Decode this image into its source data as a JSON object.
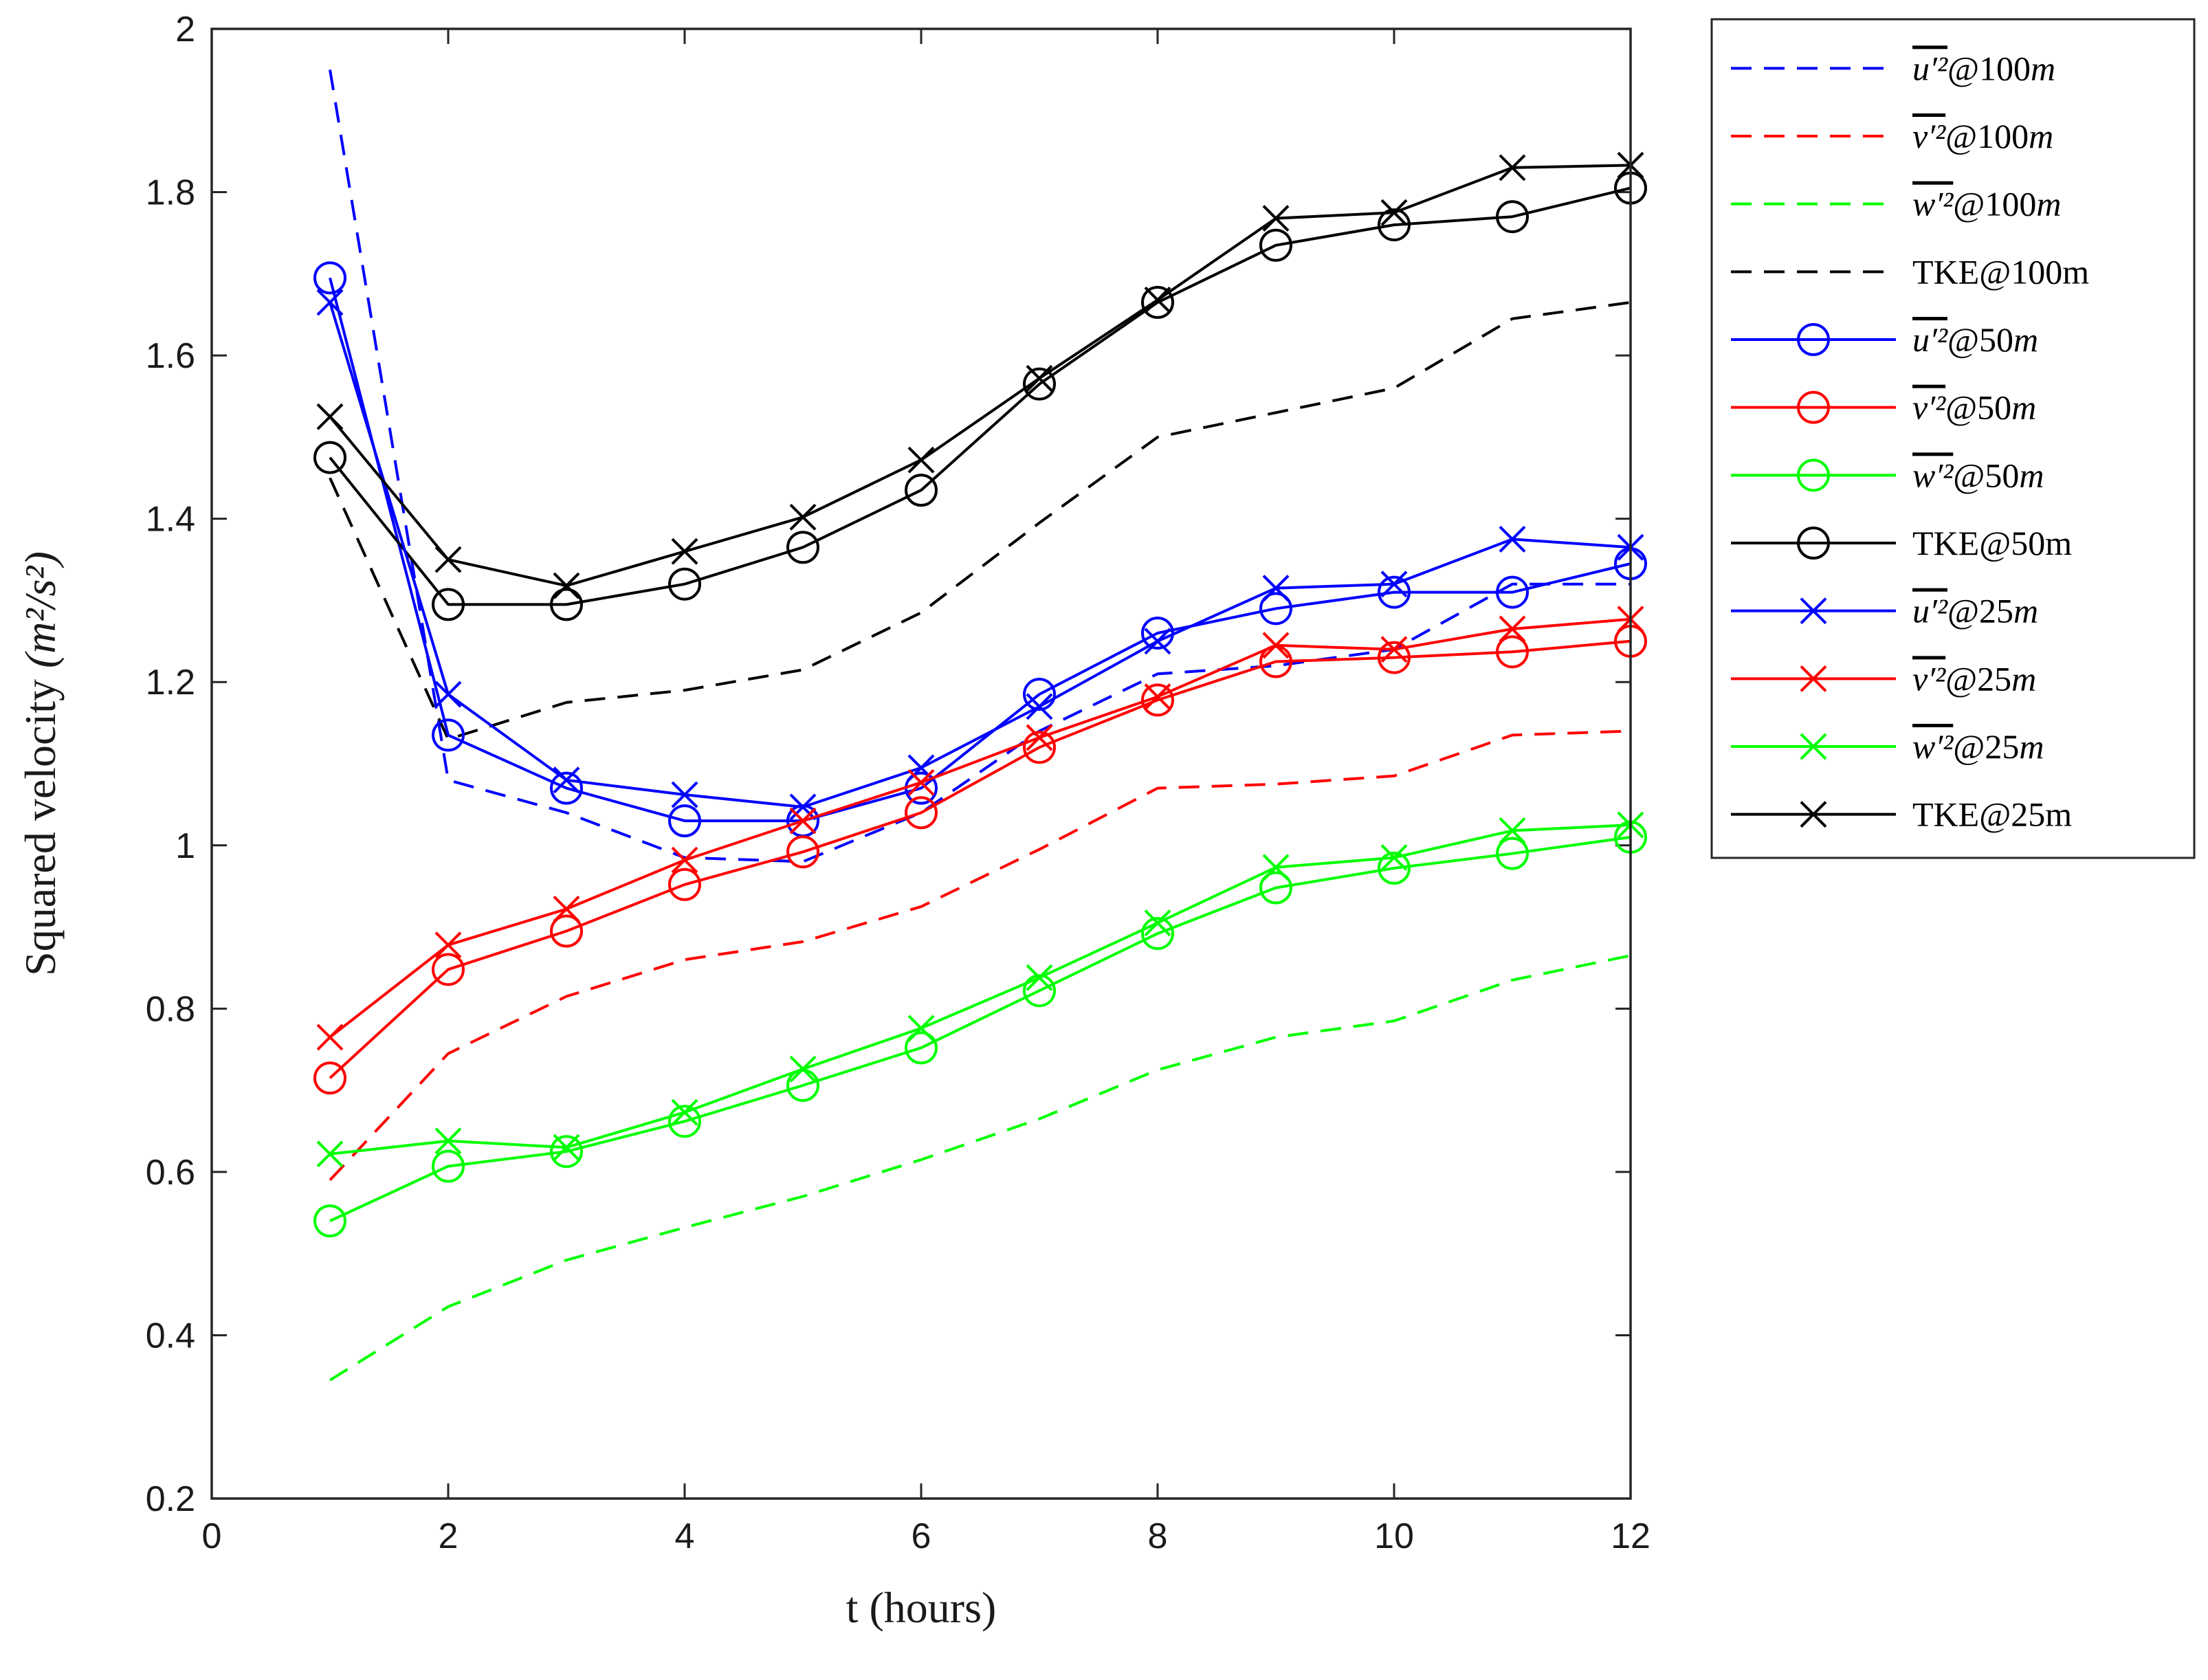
{
  "chart_data": {
    "type": "line",
    "title": "",
    "xlabel": "t (hours)",
    "ylabel_text": "Squared velocity ",
    "ylabel_unit": "(m²/s²)",
    "xlim": [
      0,
      12
    ],
    "ylim": [
      0.2,
      2
    ],
    "xticks": [
      0,
      2,
      4,
      6,
      8,
      10,
      12
    ],
    "yticks": [
      0.2,
      0.4,
      0.6,
      0.8,
      1,
      1.2,
      1.4,
      1.6,
      1.8,
      2
    ],
    "x": [
      1,
      2,
      3,
      4,
      5,
      6,
      7,
      8,
      9,
      10,
      11,
      12
    ],
    "legend_position": "outside-right",
    "series": [
      {
        "name": "u'2@100m",
        "legend_main": "u′²",
        "legend_suffix": "@100",
        "legend_unit": "m",
        "overline": true,
        "color": "#0000ff",
        "style": "dashed",
        "marker": "none",
        "values": [
          1.95,
          1.08,
          1.04,
          0.985,
          0.98,
          1.04,
          1.14,
          1.21,
          1.22,
          1.24,
          1.32,
          1.32
        ]
      },
      {
        "name": "v'2@100m",
        "legend_main": "v′²",
        "legend_suffix": "@100",
        "legend_unit": "m",
        "overline": true,
        "color": "#ff0000",
        "style": "dashed",
        "marker": "none",
        "values": [
          0.59,
          0.745,
          0.815,
          0.86,
          0.882,
          0.925,
          0.995,
          1.07,
          1.075,
          1.085,
          1.135,
          1.14
        ]
      },
      {
        "name": "w'2@100m",
        "legend_main": "w′²",
        "legend_suffix": "@100",
        "legend_unit": "m",
        "overline": true,
        "color": "#00ff00",
        "style": "dashed",
        "marker": "none",
        "values": [
          0.345,
          0.435,
          0.492,
          0.532,
          0.57,
          0.615,
          0.665,
          0.725,
          0.765,
          0.785,
          0.835,
          0.865
        ]
      },
      {
        "name": "TKE@100m",
        "legend_main": "TKE@100m",
        "legend_suffix": "",
        "legend_unit": "",
        "overline": false,
        "color": "#000000",
        "style": "dashed",
        "marker": "none",
        "values": [
          1.45,
          1.13,
          1.175,
          1.19,
          1.215,
          1.285,
          1.395,
          1.5,
          1.53,
          1.56,
          1.645,
          1.665
        ]
      },
      {
        "name": "u'2@50m",
        "legend_main": "u′²",
        "legend_suffix": "@50",
        "legend_unit": "m",
        "overline": true,
        "color": "#0000ff",
        "style": "solid",
        "marker": "circle",
        "values": [
          1.695,
          1.135,
          1.07,
          1.03,
          1.03,
          1.07,
          1.185,
          1.26,
          1.29,
          1.31,
          1.31,
          1.345
        ]
      },
      {
        "name": "v'2@50m",
        "legend_main": "v′²",
        "legend_suffix": "@50",
        "legend_unit": "m",
        "overline": true,
        "color": "#ff0000",
        "style": "solid",
        "marker": "circle",
        "values": [
          0.715,
          0.848,
          0.895,
          0.952,
          0.992,
          1.04,
          1.12,
          1.178,
          1.225,
          1.23,
          1.237,
          1.25
        ]
      },
      {
        "name": "w'2@50m",
        "legend_main": "w′²",
        "legend_suffix": "@50",
        "legend_unit": "m",
        "overline": true,
        "color": "#00ff00",
        "style": "solid",
        "marker": "circle",
        "values": [
          0.54,
          0.607,
          0.625,
          0.662,
          0.706,
          0.752,
          0.822,
          0.892,
          0.948,
          0.972,
          0.99,
          1.01
        ]
      },
      {
        "name": "TKE@50m",
        "legend_main": "TKE@50m",
        "legend_suffix": "",
        "legend_unit": "",
        "overline": false,
        "color": "#000000",
        "style": "solid",
        "marker": "circle",
        "values": [
          1.475,
          1.295,
          1.295,
          1.32,
          1.365,
          1.435,
          1.565,
          1.665,
          1.735,
          1.76,
          1.77,
          1.805
        ]
      },
      {
        "name": "u'2@25m",
        "legend_main": "u′²",
        "legend_suffix": "@25",
        "legend_unit": "m",
        "overline": true,
        "color": "#0000ff",
        "style": "solid",
        "marker": "x",
        "values": [
          1.665,
          1.185,
          1.08,
          1.062,
          1.047,
          1.095,
          1.17,
          1.25,
          1.315,
          1.32,
          1.375,
          1.365
        ]
      },
      {
        "name": "v'2@25m",
        "legend_main": "v′²",
        "legend_suffix": "@25",
        "legend_unit": "m",
        "overline": true,
        "color": "#ff0000",
        "style": "solid",
        "marker": "x",
        "values": [
          0.765,
          0.878,
          0.922,
          0.982,
          1.03,
          1.077,
          1.132,
          1.182,
          1.245,
          1.24,
          1.265,
          1.277
        ]
      },
      {
        "name": "w'2@25m",
        "legend_main": "w′²",
        "legend_suffix": "@25",
        "legend_unit": "m",
        "overline": true,
        "color": "#00ff00",
        "style": "solid",
        "marker": "x",
        "values": [
          0.622,
          0.638,
          0.63,
          0.673,
          0.726,
          0.776,
          0.838,
          0.905,
          0.973,
          0.985,
          1.018,
          1.025
        ]
      },
      {
        "name": "TKE@25m",
        "legend_main": "TKE@25m",
        "legend_suffix": "",
        "legend_unit": "",
        "overline": false,
        "color": "#000000",
        "style": "solid",
        "marker": "x",
        "values": [
          1.525,
          1.35,
          1.318,
          1.36,
          1.402,
          1.472,
          1.572,
          1.668,
          1.768,
          1.775,
          1.83,
          1.833
        ]
      }
    ]
  }
}
